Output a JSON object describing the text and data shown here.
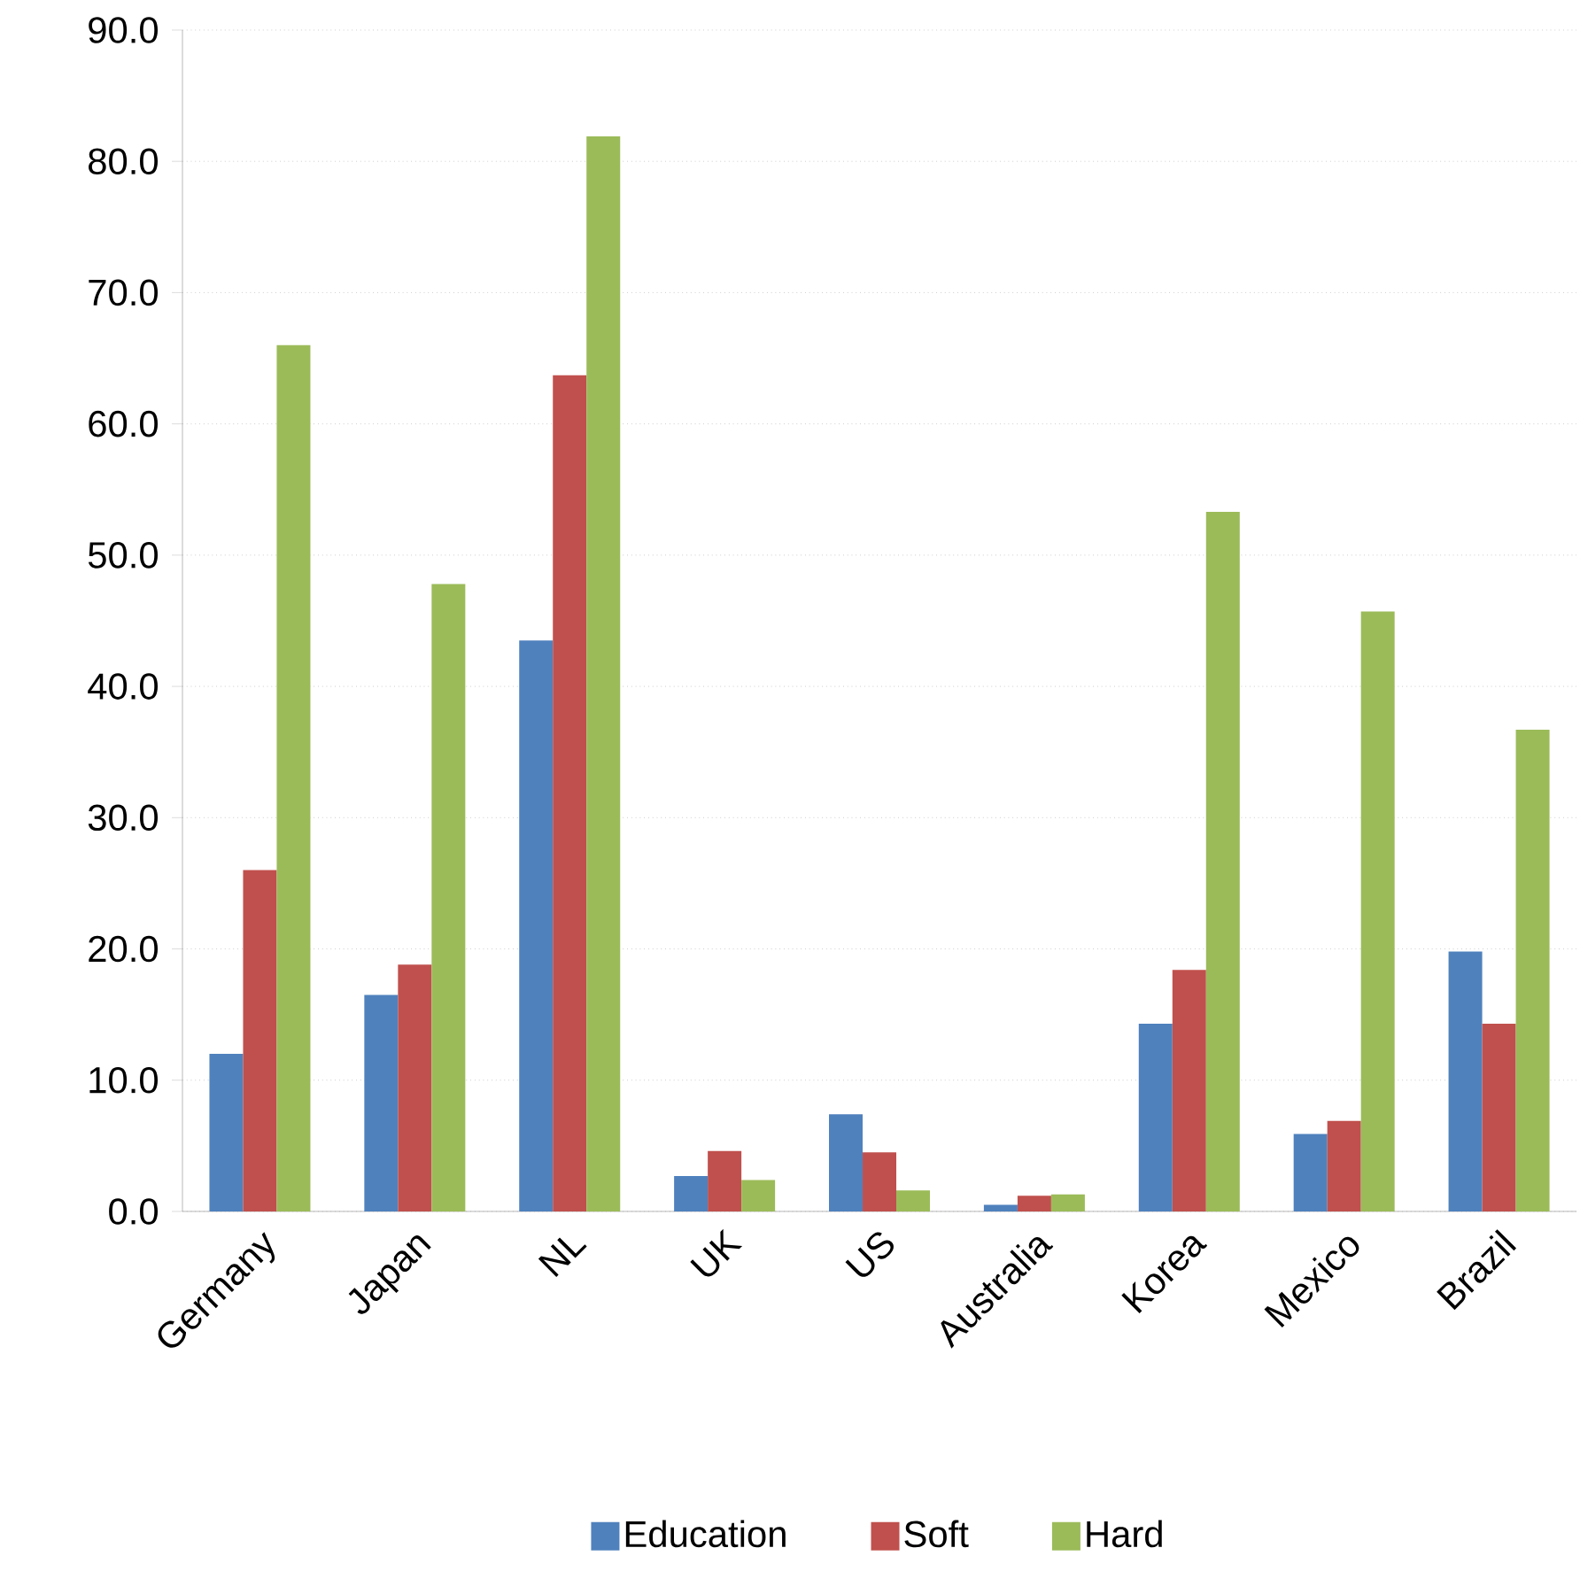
{
  "chart_data": {
    "type": "bar",
    "categories": [
      "Germany",
      "Japan",
      "NL",
      "UK",
      "US",
      "Australia",
      "Korea",
      "Mexico",
      "Brazil"
    ],
    "series": [
      {
        "name": "Education",
        "color": "#4f81bd",
        "values": [
          12.0,
          16.5,
          43.5,
          2.7,
          7.4,
          0.5,
          14.3,
          5.9,
          19.8
        ]
      },
      {
        "name": "Soft",
        "color": "#c0504d",
        "values": [
          26.0,
          18.8,
          63.7,
          4.6,
          4.5,
          1.2,
          18.4,
          6.9,
          14.3
        ]
      },
      {
        "name": "Hard",
        "color": "#9bbb59",
        "values": [
          66.0,
          47.8,
          81.9,
          2.4,
          1.6,
          1.3,
          53.3,
          45.7,
          36.7
        ]
      }
    ],
    "ylim": [
      0,
      90
    ],
    "yticks": [
      {
        "value": 0,
        "label": "0.0"
      },
      {
        "value": 10,
        "label": "10.0"
      },
      {
        "value": 20,
        "label": "20.0"
      },
      {
        "value": 30,
        "label": "30.0"
      },
      {
        "value": 40,
        "label": "40.0"
      },
      {
        "value": 50,
        "label": "50.0"
      },
      {
        "value": 60,
        "label": "60.0"
      },
      {
        "value": 70,
        "label": "70.0"
      },
      {
        "value": 80,
        "label": "80.0"
      },
      {
        "value": 90,
        "label": "90.0"
      }
    ],
    "grid": "y",
    "legend": "bottom"
  }
}
